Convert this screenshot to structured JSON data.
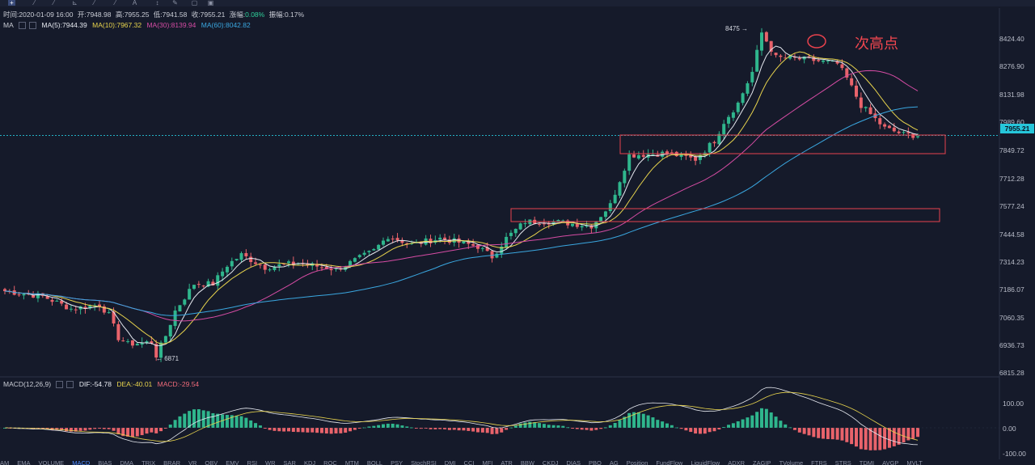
{
  "header": {
    "time_label": "时间:2020-01-09 16:00",
    "open_label": "开:7948.98",
    "high_label": "高:7955.25",
    "low_label": "低:7941.58",
    "close_label": "收:7955.21",
    "change_label": "涨幅:",
    "change_value": "0.08%",
    "amplitude_label": "振幅:0.17%"
  },
  "ma_legend": {
    "name": "MA",
    "ma5": "MA(5):7944.39",
    "ma10": "MA(10):7967.32",
    "ma30": "MA(30):8139.94",
    "ma60": "MA(60):8042.82",
    "colors": {
      "ma5": "#e6e9f0",
      "ma10": "#e8d44d",
      "ma30": "#d64ca4",
      "ma60": "#3aa7e0"
    }
  },
  "annotation": "次高点",
  "high_marker": "8475",
  "low_marker": "6871",
  "current_price": "7955.21",
  "price_axis": [
    "8424.40",
    "8276.90",
    "8131.98",
    "7989.60",
    "7849.72",
    "7712.28",
    "7577.24",
    "7444.58",
    "7314.23",
    "7186.07",
    "7060.35",
    "6936.73",
    "6815.28"
  ],
  "macd_legend": {
    "name": "MACD(12,26,9)",
    "dif": "DIF:-54.78",
    "dea": "DEA:-40.01",
    "macd": "MACD:-29.54",
    "colors": {
      "dif": "#e6e9f0",
      "dea": "#e8d44d",
      "macd": "#f06b7a"
    }
  },
  "macd_axis": [
    "100.00",
    "0.00",
    "-100.00"
  ],
  "bottom_tabs": [
    "AM",
    "EMA",
    "VOLUME",
    "MACD",
    "BIAS",
    "DMA",
    "TRIX",
    "BRAR",
    "VR",
    "OBV",
    "EMV",
    "RSI",
    "WR",
    "SAR",
    "KDJ",
    "ROC",
    "MTM",
    "BOLL",
    "PSY",
    "StochRSI",
    "DMI",
    "CCI",
    "MFI",
    "ATR",
    "BBW",
    "CKDJ",
    "DIAS",
    "PBO",
    "AG",
    "Position",
    "FundFlow",
    "LiquidFlow",
    "ADXR",
    "ZAGIP",
    "TVolume",
    "FTRS",
    "STRS",
    "TDMI",
    "AVGP",
    "MVLT"
  ],
  "colors": {
    "up": "#2fb68d",
    "down": "#e9636b",
    "bg": "#151a2a",
    "box": "#e8424d"
  }
}
